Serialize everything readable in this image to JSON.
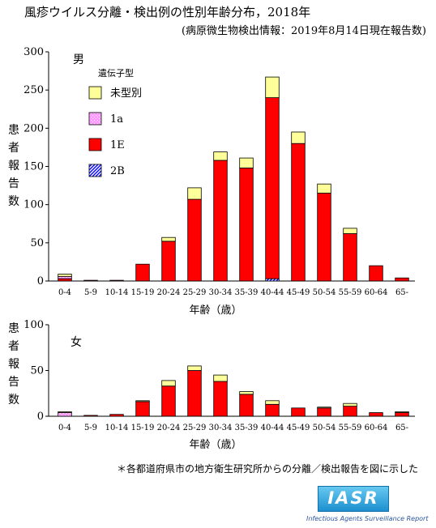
{
  "title": "風疹ウイルス分離・検出例の性別年齢分布，2018年",
  "subtitle": "(病原微生物検出情報：2019年8月14日現在報告数)",
  "footnote": "＊各都道府県市の地方衛生研究所からの分離／検出報告を図に示した",
  "logo": {
    "text": "IASR",
    "subtitle": "Infectious Agents Surveillance Report"
  },
  "colors": {
    "unknown": "#ffff99",
    "1a": "#ff99ff",
    "1E": "#ff0000",
    "2B": "#0000ff"
  },
  "chart_data": [
    {
      "type": "bar",
      "stacked": true,
      "panel_label": "男",
      "ylabel": "患者報告数",
      "xlabel": "年齢（歳）",
      "ylim": [
        0,
        300
      ],
      "yticks": [
        0,
        50,
        100,
        150,
        200,
        250,
        300
      ],
      "legend": {
        "title": "遺伝子型",
        "placement": "top-left"
      },
      "categories": [
        "0-4",
        "5-9",
        "10-14",
        "15-19",
        "20-24",
        "25-29",
        "30-34",
        "35-39",
        "40-44",
        "45-49",
        "50-54",
        "55-59",
        "60-64",
        "65-"
      ],
      "series": [
        {
          "name": "2B",
          "key": "2B",
          "values": [
            0,
            0,
            0,
            0,
            0,
            0,
            0,
            0,
            3,
            0,
            0,
            0,
            0,
            0
          ]
        },
        {
          "name": "1E",
          "key": "1E",
          "values": [
            3,
            1,
            1,
            22,
            52,
            107,
            158,
            148,
            237,
            180,
            115,
            62,
            20,
            4
          ]
        },
        {
          "name": "1a",
          "key": "1a",
          "values": [
            3,
            0,
            0,
            0,
            0,
            0,
            0,
            0,
            0,
            0,
            0,
            0,
            0,
            0
          ]
        },
        {
          "name": "未型別",
          "key": "unknown",
          "values": [
            3,
            0,
            0,
            0,
            5,
            15,
            11,
            13,
            27,
            15,
            12,
            7,
            0,
            0
          ]
        }
      ]
    },
    {
      "type": "bar",
      "stacked": true,
      "panel_label": "女",
      "ylabel": "患者報告数",
      "xlabel": "年齢（歳）",
      "ylim": [
        0,
        100
      ],
      "yticks": [
        0,
        50,
        100
      ],
      "categories": [
        "0-4",
        "5-9",
        "10-14",
        "15-19",
        "20-24",
        "25-29",
        "30-34",
        "35-39",
        "40-44",
        "45-49",
        "50-54",
        "55-59",
        "60-64",
        "65-"
      ],
      "series": [
        {
          "name": "2B",
          "key": "2B",
          "values": [
            0,
            0,
            0,
            0,
            0,
            0,
            0,
            0,
            0,
            0,
            0,
            0,
            0,
            0
          ]
        },
        {
          "name": "1E",
          "key": "1E",
          "values": [
            0,
            1,
            2,
            16,
            33,
            50,
            38,
            24,
            13,
            9,
            9,
            11,
            4,
            4
          ]
        },
        {
          "name": "1a",
          "key": "1a",
          "values": [
            4,
            0,
            0,
            0,
            0,
            0,
            0,
            0,
            0,
            0,
            0,
            0,
            0,
            0
          ]
        },
        {
          "name": "未型別",
          "key": "unknown",
          "values": [
            1,
            0,
            0,
            1,
            6,
            5,
            7,
            3,
            4,
            0,
            1,
            3,
            0,
            1
          ]
        }
      ]
    }
  ]
}
